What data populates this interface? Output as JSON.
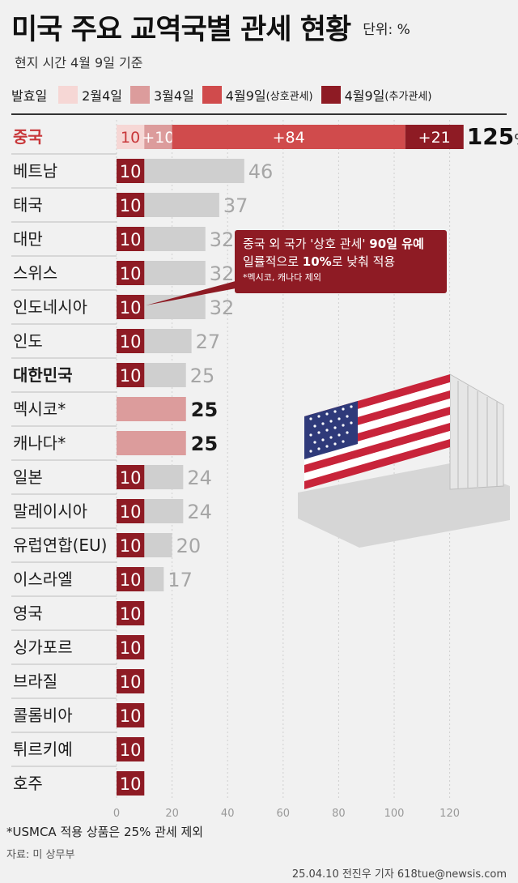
{
  "header": {
    "title": "미국 주요 교역국별 관세 현황",
    "unit": "단위: %",
    "subtitle": "현지 시간 4월 9일 기준"
  },
  "legend": {
    "lead": "발효일",
    "items": [
      {
        "label": "2월4일",
        "sub": "",
        "color": "#f6d7d5"
      },
      {
        "label": "3월4일",
        "sub": "",
        "color": "#dc9c9c"
      },
      {
        "label": "4월9일",
        "sub": "(상호관세)",
        "color": "#d04b4c"
      },
      {
        "label": "4월9일",
        "sub": "(추가관세)",
        "color": "#8e1b24"
      }
    ]
  },
  "colors": {
    "base": "#8e1b24",
    "increase": "#cfcfcf",
    "mexican_canadian": "#dc9c9c",
    "accent_red": "#c8373a"
  },
  "chart_data": {
    "type": "bar",
    "orientation": "horizontal",
    "stacked": true,
    "xlim": [
      0,
      130
    ],
    "xticks": [
      0,
      20,
      40,
      60,
      80,
      100,
      120
    ],
    "rows": [
      {
        "country": "중국",
        "style": "china",
        "segments": [
          10,
          10,
          84,
          21
        ],
        "segment_labels": [
          "10",
          "+10",
          "+84",
          "+21"
        ],
        "total": "125",
        "total_suffix": "%"
      },
      {
        "country": "베트남",
        "style": "normal",
        "base": 10,
        "total": 46
      },
      {
        "country": "태국",
        "style": "normal",
        "base": 10,
        "total": 37
      },
      {
        "country": "대만",
        "style": "normal",
        "base": 10,
        "total": 32
      },
      {
        "country": "스위스",
        "style": "normal",
        "base": 10,
        "total": 32
      },
      {
        "country": "인도네시아",
        "style": "normal",
        "base": 10,
        "total": 32
      },
      {
        "country": "인도",
        "style": "normal",
        "base": 10,
        "total": 27
      },
      {
        "country": "대한민국",
        "style": "korea",
        "base": 10,
        "total": 25
      },
      {
        "country": "멕시코*",
        "style": "mexcan",
        "total": 25
      },
      {
        "country": "캐나다*",
        "style": "mexcan",
        "total": 25
      },
      {
        "country": "일본",
        "style": "normal",
        "base": 10,
        "total": 24
      },
      {
        "country": "말레이시아",
        "style": "normal",
        "base": 10,
        "total": 24
      },
      {
        "country": "유럽연합(EU)",
        "style": "normal",
        "base": 10,
        "total": 20
      },
      {
        "country": "이스라엘",
        "style": "normal",
        "base": 10,
        "total": 17
      },
      {
        "country": "영국",
        "style": "normal",
        "base": 10,
        "total": 10
      },
      {
        "country": "싱가포르",
        "style": "normal",
        "base": 10,
        "total": 10
      },
      {
        "country": "브라질",
        "style": "normal",
        "base": 10,
        "total": 10
      },
      {
        "country": "콜롬비아",
        "style": "normal",
        "base": 10,
        "total": 10
      },
      {
        "country": "튀르키예",
        "style": "normal",
        "base": 10,
        "total": 10
      },
      {
        "country": "호주",
        "style": "normal",
        "base": 10,
        "total": 10
      }
    ]
  },
  "callout": {
    "line1_a": "중국 외 국가 '상호 관세' ",
    "line1_b": "90일 유예",
    "line2_a": "일률적으로 ",
    "line2_b": "10%",
    "line2_c": "로 낮춰 적용",
    "line3": "*멕시코, 캐나다 제외"
  },
  "footnote": "*USMCA 적용 상품은 25% 관세 제외",
  "source": "자료: 미 상무부",
  "credit": "25.04.10 전진우 기자 618tue@newsis.com"
}
